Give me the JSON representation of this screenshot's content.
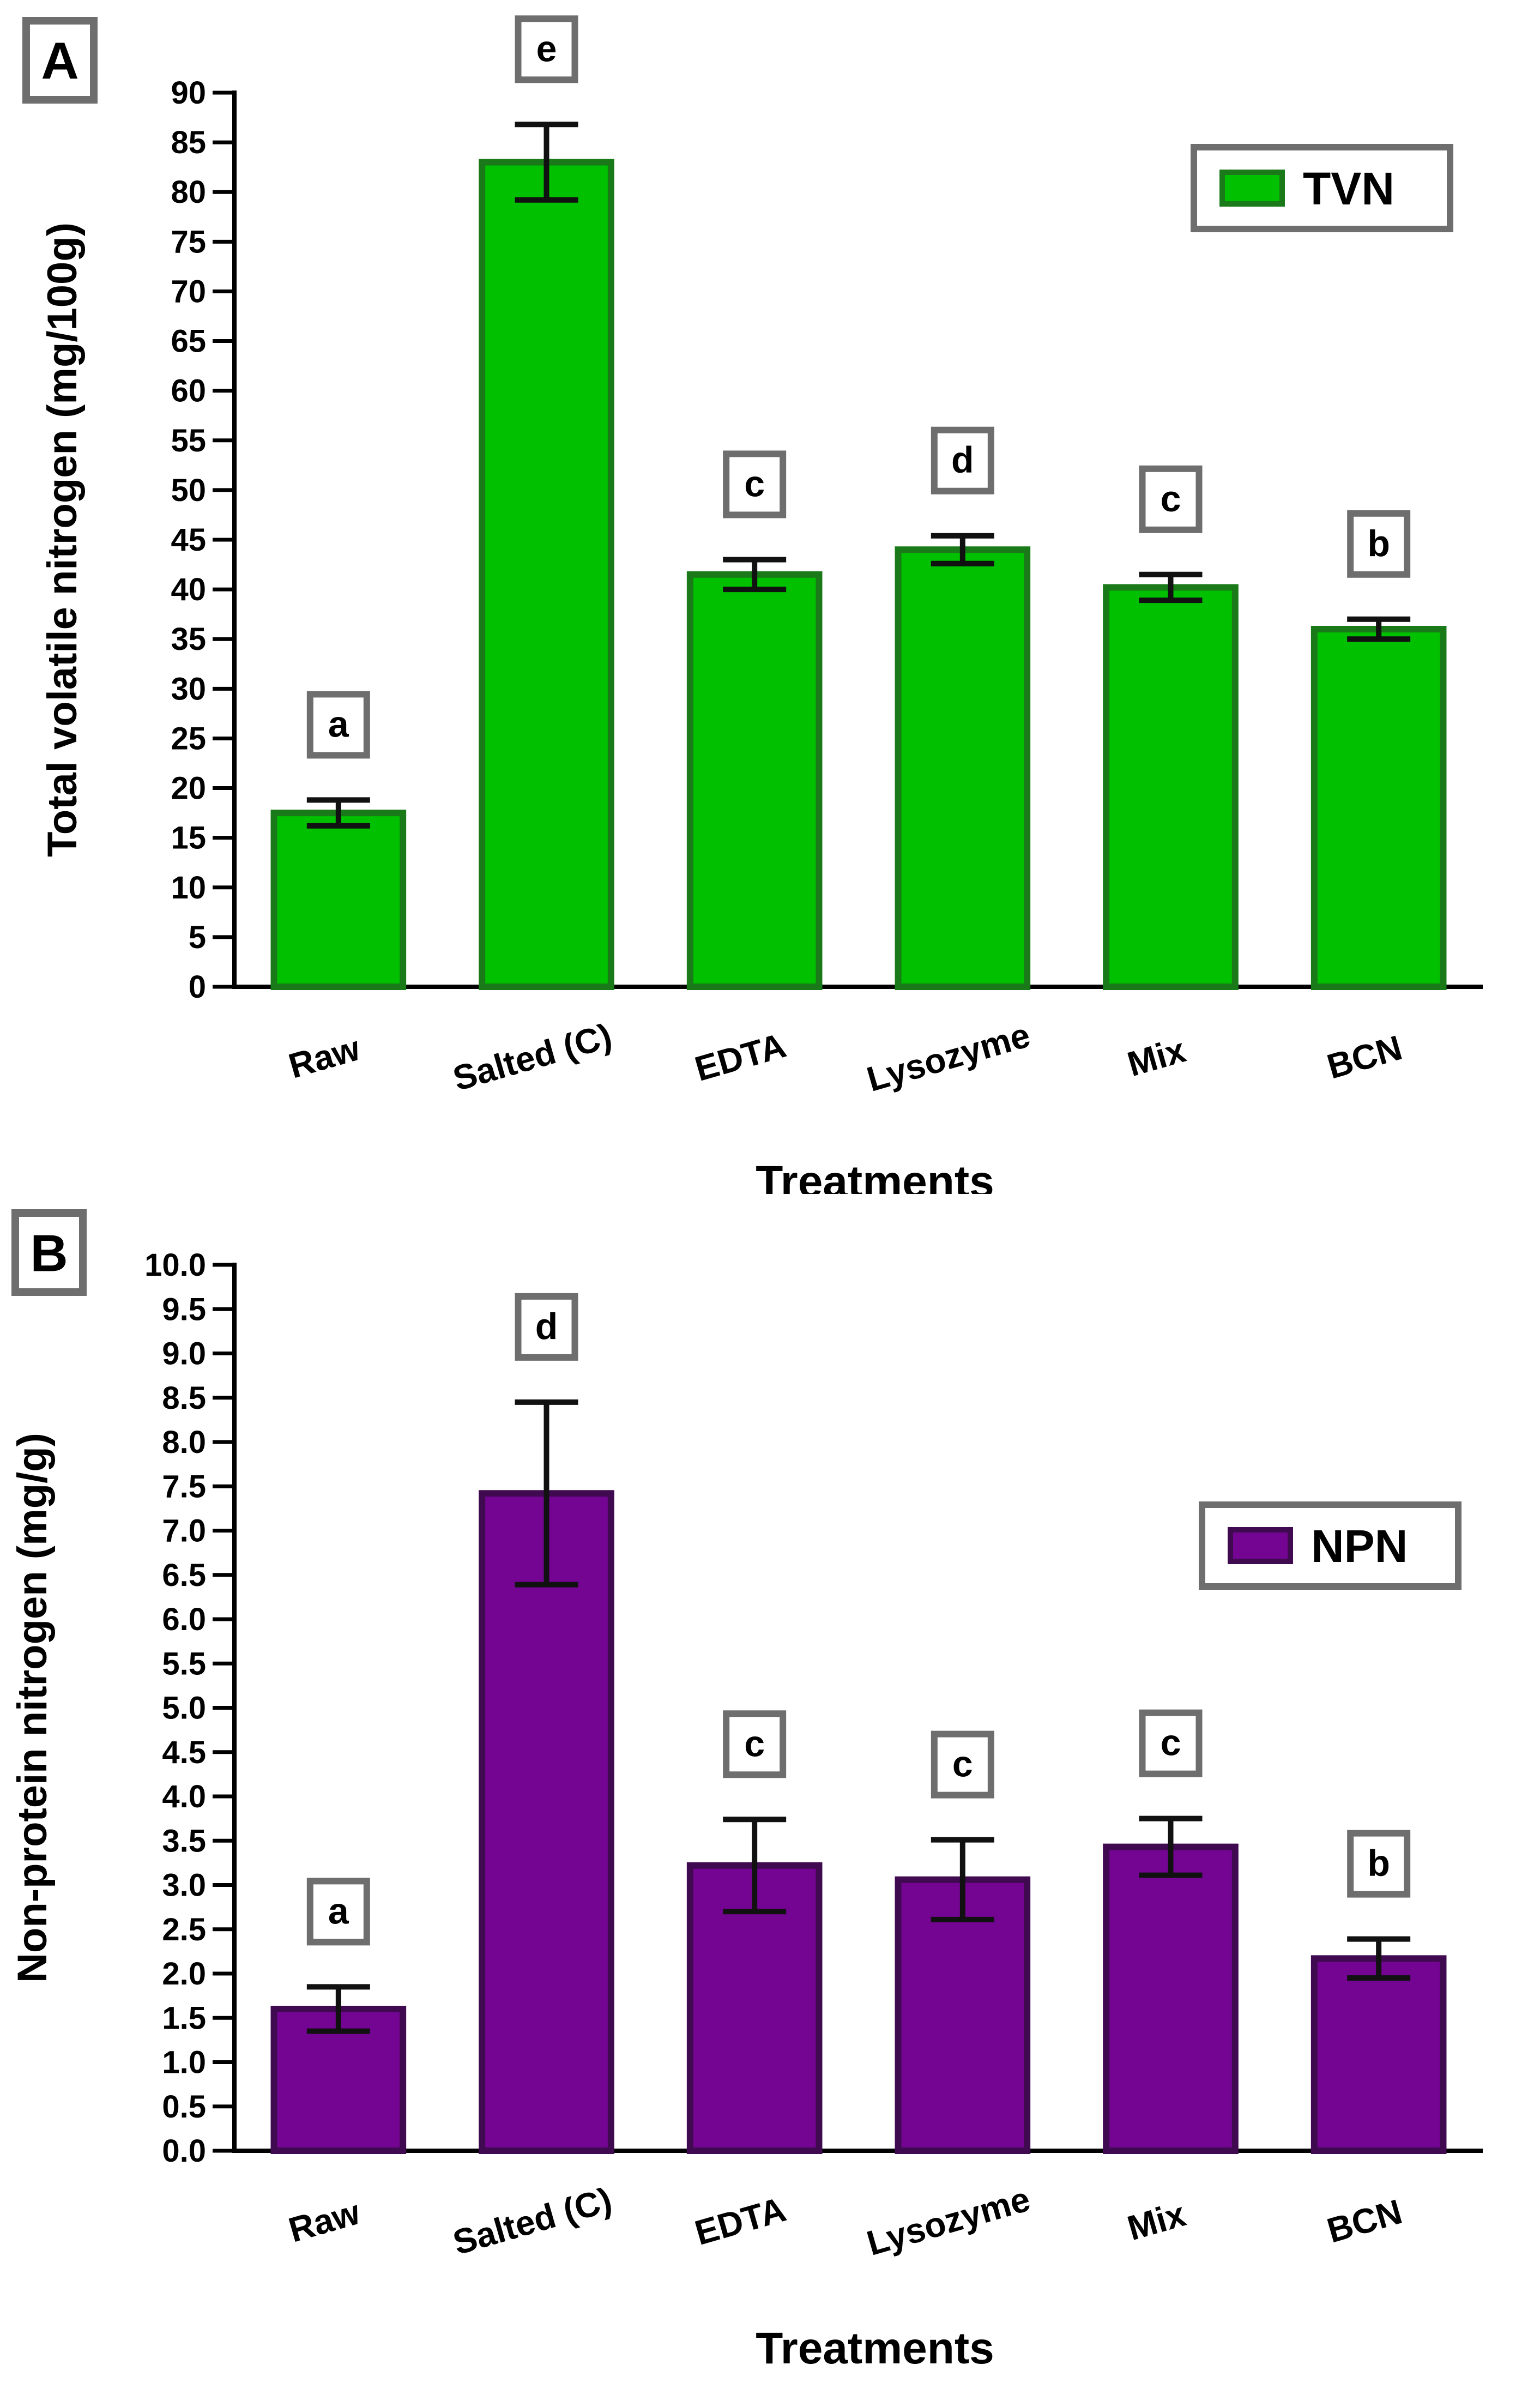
{
  "chart_data": [
    {
      "type": "bar",
      "panel_label": "A",
      "title": "",
      "xlabel": "Treatments",
      "ylabel": "Total volatile nitrogen  (mg/100g)",
      "ylim": [
        0,
        90
      ],
      "ytick_step": 5,
      "yticks": [
        "0",
        "5",
        "10",
        "15",
        "20",
        "25",
        "30",
        "35",
        "40",
        "45",
        "50",
        "55",
        "60",
        "65",
        "70",
        "75",
        "80",
        "85",
        "90"
      ],
      "categories": [
        "Raw",
        "Salted (C)",
        "EDTA",
        "Lysozyme",
        "Mix",
        "BCN"
      ],
      "series": [
        {
          "name": "TVN",
          "values": [
            17.5,
            83.0,
            41.5,
            44.0,
            40.2,
            36.0
          ],
          "error": [
            1.3,
            3.8,
            1.5,
            1.4,
            1.3,
            1.0
          ],
          "significance": [
            "a",
            "e",
            "c",
            "d",
            "c",
            "b"
          ],
          "color": "#00c000",
          "edge_color": "#1a7a1a"
        }
      ],
      "legend": {
        "position": "top-right",
        "label": "TVN"
      },
      "grid": false
    },
    {
      "type": "bar",
      "panel_label": "B",
      "title": "",
      "xlabel": "Treatments",
      "ylabel": "Non-protein nitrogen  (mg/g)",
      "ylim": [
        0,
        10
      ],
      "ytick_step": 0.5,
      "yticks": [
        "0.0",
        "0.5",
        "1.0",
        "1.5",
        "2.0",
        "2.5",
        "3.0",
        "3.5",
        "4.0",
        "4.5",
        "5.0",
        "5.5",
        "6.0",
        "6.5",
        "7.0",
        "7.5",
        "8.0",
        "8.5",
        "9.0",
        "9.5",
        "10.0"
      ],
      "categories": [
        "Raw",
        "Salted (C)",
        "EDTA",
        "Lysozyme",
        "Mix",
        "BCN"
      ],
      "series": [
        {
          "name": "NPN",
          "values": [
            1.6,
            7.42,
            3.22,
            3.06,
            3.43,
            2.17
          ],
          "error": [
            0.25,
            1.03,
            0.52,
            0.45,
            0.32,
            0.22
          ],
          "significance": [
            "a",
            "d",
            "c",
            "c",
            "c",
            "b"
          ],
          "color": "#740592",
          "edge_color": "#3f0a50"
        }
      ],
      "legend": {
        "position": "top-right",
        "label": "NPN"
      },
      "grid": false
    }
  ]
}
